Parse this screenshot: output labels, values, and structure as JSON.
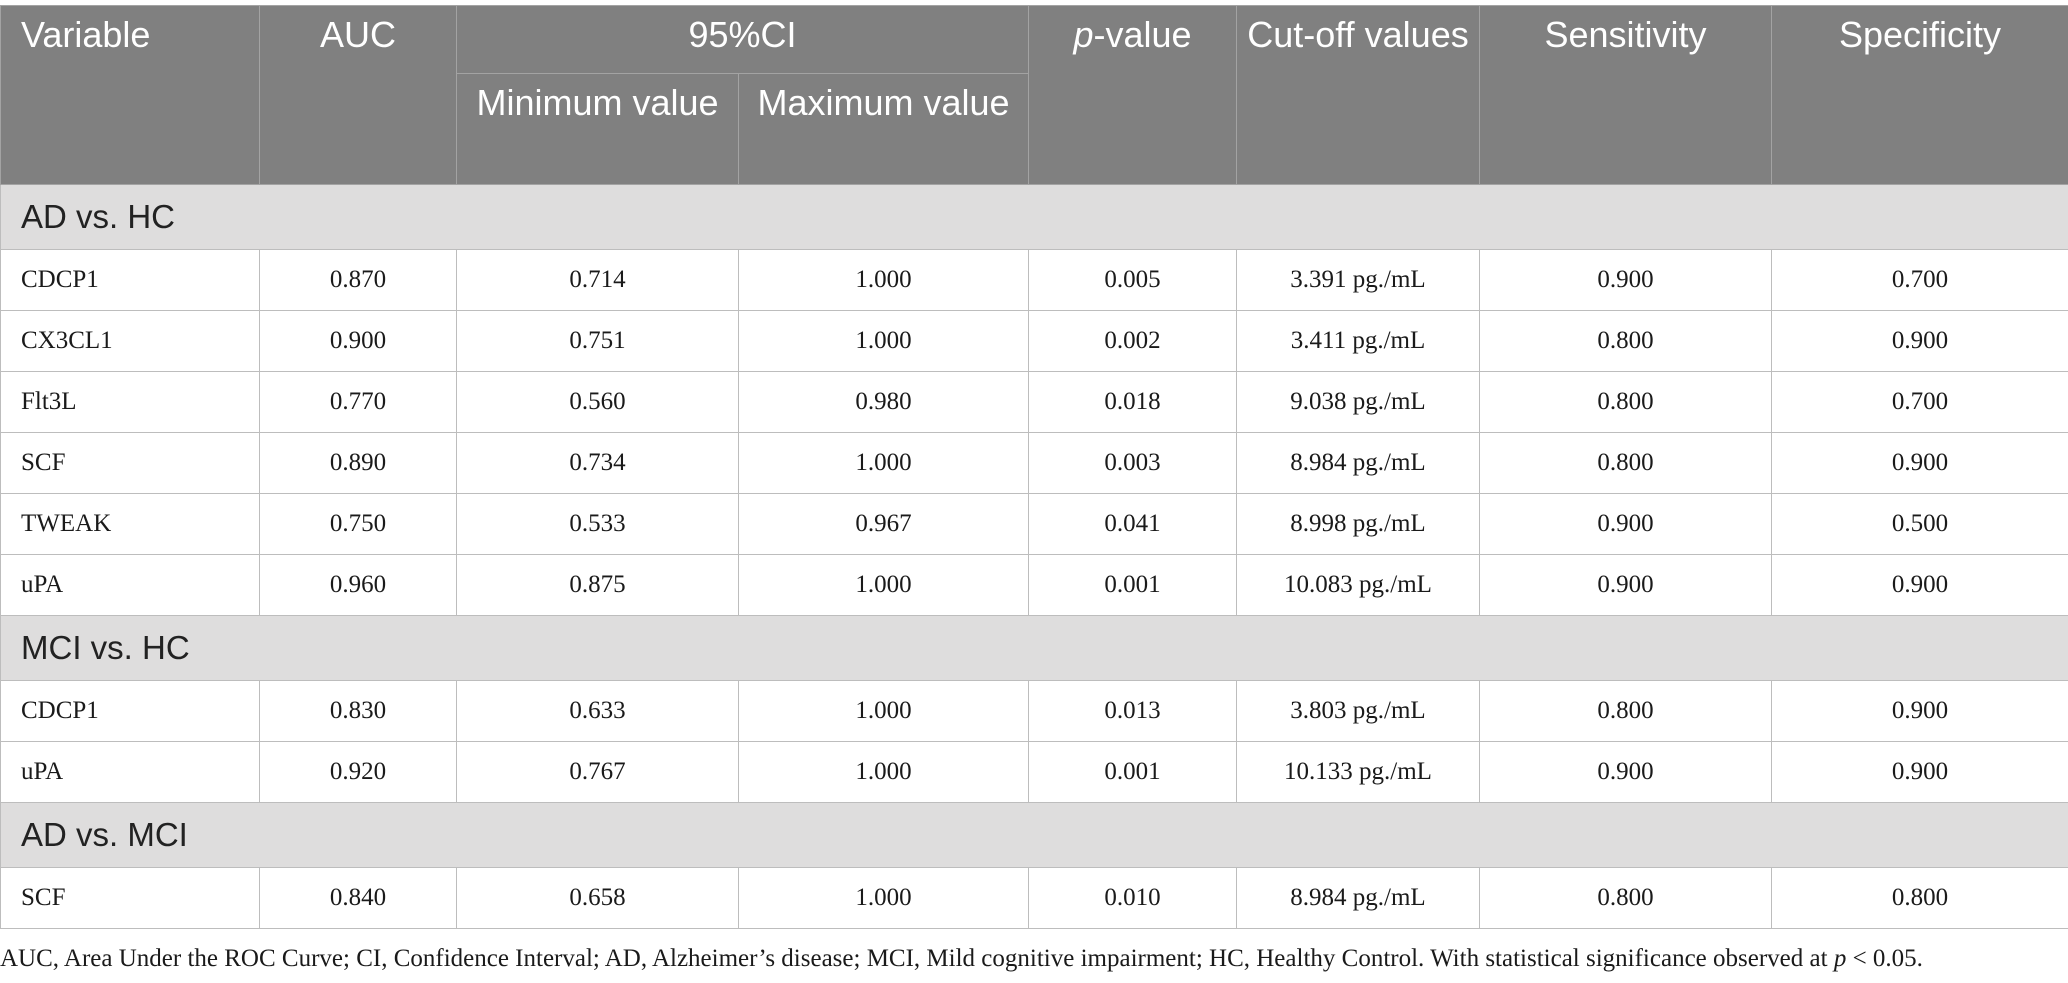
{
  "headers": {
    "variable": "Variable",
    "auc": "AUC",
    "ci": "95%CI",
    "ci_min": "Minimum value",
    "ci_max": "Maximum value",
    "p_italic": "p",
    "p_rest": "-value",
    "cutoff": "Cut-off values",
    "sensitivity": "Sensitivity",
    "specificity": "Specificity"
  },
  "groups": [
    {
      "title": "AD vs. HC",
      "rows": [
        {
          "variable": "CDCP1",
          "auc": "0.870",
          "ci_min": "0.714",
          "ci_max": "1.000",
          "p": "0.005",
          "cutoff": "3.391 pg./mL",
          "sensitivity": "0.900",
          "specificity": "0.700"
        },
        {
          "variable": "CX3CL1",
          "auc": "0.900",
          "ci_min": "0.751",
          "ci_max": "1.000",
          "p": "0.002",
          "cutoff": "3.411 pg./mL",
          "sensitivity": "0.800",
          "specificity": "0.900"
        },
        {
          "variable": "Flt3L",
          "auc": "0.770",
          "ci_min": "0.560",
          "ci_max": "0.980",
          "p": "0.018",
          "cutoff": "9.038 pg./mL",
          "sensitivity": "0.800",
          "specificity": "0.700"
        },
        {
          "variable": "SCF",
          "auc": "0.890",
          "ci_min": "0.734",
          "ci_max": "1.000",
          "p": "0.003",
          "cutoff": "8.984 pg./mL",
          "sensitivity": "0.800",
          "specificity": "0.900"
        },
        {
          "variable": "TWEAK",
          "auc": "0.750",
          "ci_min": "0.533",
          "ci_max": "0.967",
          "p": "0.041",
          "cutoff": "8.998 pg./mL",
          "sensitivity": "0.900",
          "specificity": "0.500"
        },
        {
          "variable": "uPA",
          "auc": "0.960",
          "ci_min": "0.875",
          "ci_max": "1.000",
          "p": "0.001",
          "cutoff": "10.083 pg./mL",
          "sensitivity": "0.900",
          "specificity": "0.900"
        }
      ]
    },
    {
      "title": "MCI vs. HC",
      "rows": [
        {
          "variable": "CDCP1",
          "auc": "0.830",
          "ci_min": "0.633",
          "ci_max": "1.000",
          "p": "0.013",
          "cutoff": "3.803 pg./mL",
          "sensitivity": "0.800",
          "specificity": "0.900"
        },
        {
          "variable": "uPA",
          "auc": "0.920",
          "ci_min": "0.767",
          "ci_max": "1.000",
          "p": "0.001",
          "cutoff": "10.133 pg./mL",
          "sensitivity": "0.900",
          "specificity": "0.900"
        }
      ]
    },
    {
      "title": "AD vs. MCI",
      "rows": [
        {
          "variable": "SCF",
          "auc": "0.840",
          "ci_min": "0.658",
          "ci_max": "1.000",
          "p": "0.010",
          "cutoff": "8.984 pg./mL",
          "sensitivity": "0.800",
          "specificity": "0.800"
        }
      ]
    }
  ],
  "footnote": {
    "text": "AUC, Area Under the ROC Curve; CI, Confidence Interval; AD, Alzheimer’s disease; MCI, Mild cognitive impairment; HC, Healthy Control. With statistical significance observed at ",
    "p_italic": "p",
    "tail": " < 0.05."
  },
  "colors": {
    "header_bg": "#808080",
    "group_bg": "#dedddd",
    "border": "#bdbdbd"
  }
}
